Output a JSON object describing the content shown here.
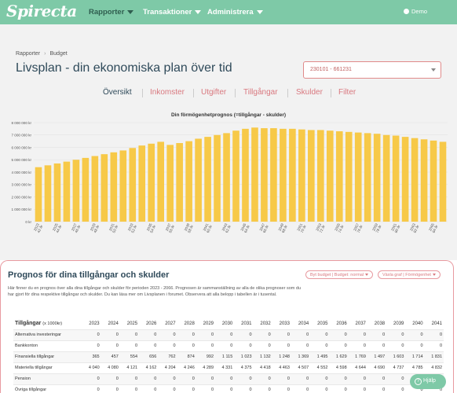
{
  "nav": {
    "logo": "Spirecta",
    "items": [
      {
        "label": "Rapporter"
      },
      {
        "label": "Transaktioner"
      },
      {
        "label": "Administrera"
      }
    ],
    "user": "Demo"
  },
  "breadcrumb": [
    "Rapporter",
    "Budget"
  ],
  "page_title": "Livsplan - din ekonomiska plan över tid",
  "period_select": {
    "value": "230101 - 661231"
  },
  "tabs": [
    {
      "label": "Översikt"
    },
    {
      "label": "Inkomster"
    },
    {
      "label": "Utgifter"
    },
    {
      "label": "Tillgångar"
    },
    {
      "label": "Skulder"
    },
    {
      "label": "Filter"
    }
  ],
  "chart_data": {
    "type": "bar",
    "title": "Din förmögenhetprognos (=tillgångar - skulder)",
    "color": "#f7c948",
    "ylim": [
      0,
      8000000
    ],
    "yticks": [
      "0 kr",
      "1 000 000 kr",
      "2 000 000 kr",
      "3 000 000 kr",
      "4 000 000 kr",
      "5 000 000 kr",
      "6 000 000 kr",
      "7 000 000 kr",
      "8 000 000 kr"
    ],
    "tick_labels": [
      {
        "year": "2023",
        "age": "42 år"
      },
      {
        "year": "2025",
        "age": "44 år"
      },
      {
        "year": "2027",
        "age": "46 år"
      },
      {
        "year": "2029",
        "age": "48 år"
      },
      {
        "year": "2031",
        "age": "50 år"
      },
      {
        "year": "2033",
        "age": "52 år"
      },
      {
        "year": "2035",
        "age": "54 år"
      },
      {
        "year": "2037",
        "age": "56 år"
      },
      {
        "year": "2039",
        "age": "58 år"
      },
      {
        "year": "2041",
        "age": "60 år"
      },
      {
        "year": "2043",
        "age": "62 år"
      },
      {
        "year": "2045",
        "age": "64 år"
      },
      {
        "year": "2047",
        "age": "66 år"
      },
      {
        "year": "2049",
        "age": "68 år"
      },
      {
        "year": "2051",
        "age": "70 år"
      },
      {
        "year": "2053",
        "age": "72 år"
      },
      {
        "year": "2055",
        "age": "74 år"
      },
      {
        "year": "2057",
        "age": "76 år"
      },
      {
        "year": "2059",
        "age": "78 år"
      },
      {
        "year": "2061",
        "age": "80 år"
      },
      {
        "year": "2063",
        "age": "82 år"
      },
      {
        "year": "2065",
        "age": "84 år"
      }
    ],
    "values": [
      4400000,
      4550000,
      4700000,
      4850000,
      5000000,
      5150000,
      5300000,
      5450000,
      5600000,
      5750000,
      5950000,
      6150000,
      6300000,
      6450000,
      6200000,
      6350000,
      6500000,
      6700000,
      6850000,
      7000000,
      7150000,
      7350000,
      7500000,
      7600000,
      7550000,
      7550000,
      7500000,
      7500000,
      7450000,
      7400000,
      7400000,
      7350000,
      7300000,
      7250000,
      7200000,
      7150000,
      7100000,
      7000000,
      6950000,
      6850000,
      6750000,
      6650000,
      6550000,
      6450000
    ]
  },
  "card": {
    "title": "Prognos för dina tillgångar och skulder",
    "budget_pill": "Byt budget | Budget: normal",
    "graph_pill": "Växla graf | Förmögenhet",
    "description": "Här finner du en prognos över alla dina tillgångar och skulder för perioden 2023 - 2066. Prognosen är sammanställning av alla de olika prognoser som du har gjort för dina respektive tillgångar och skulder. Du kan läsa mer om Livsplanen i forumet. Observera att alla belopp i tabellen är i tusental."
  },
  "table": {
    "header_label": "Tillgångar",
    "header_unit": "(x 1000kr)",
    "years": [
      "2023",
      "2024",
      "2025",
      "2026",
      "2027",
      "2028",
      "2029",
      "2030",
      "2031",
      "2032",
      "2033",
      "2034",
      "2035",
      "2036",
      "2037",
      "2038",
      "2039",
      "2040",
      "2041"
    ],
    "rows": [
      {
        "label": "Alternativa investeringar",
        "values": [
          "0",
          "0",
          "0",
          "0",
          "0",
          "0",
          "0",
          "0",
          "0",
          "0",
          "0",
          "0",
          "0",
          "0",
          "0",
          "0",
          "0",
          "0",
          "0"
        ]
      },
      {
        "label": "Bankkonton",
        "values": [
          "0",
          "0",
          "0",
          "0",
          "0",
          "0",
          "0",
          "0",
          "0",
          "0",
          "0",
          "0",
          "0",
          "0",
          "0",
          "0",
          "0",
          "0",
          "0"
        ]
      },
      {
        "label": "Finansiella tillgångar",
        "values": [
          "365",
          "457",
          "554",
          "656",
          "762",
          "874",
          "992",
          "1 115",
          "1 023",
          "1 132",
          "1 248",
          "1 369",
          "1 495",
          "1 629",
          "1 769",
          "1 497",
          "1 603",
          "1 714",
          "1 831"
        ]
      },
      {
        "label": "Materiella tillgångar",
        "values": [
          "4 040",
          "4 080",
          "4 121",
          "4 162",
          "4 204",
          "4 246",
          "4 289",
          "4 331",
          "4 375",
          "4 418",
          "4 463",
          "4 507",
          "4 552",
          "4 598",
          "4 644",
          "4 690",
          "4 737",
          "4 785",
          "4 832"
        ]
      },
      {
        "label": "Pension",
        "values": [
          "0",
          "0",
          "0",
          "0",
          "0",
          "0",
          "0",
          "0",
          "0",
          "0",
          "0",
          "0",
          "0",
          "0",
          "0",
          "0",
          "0",
          "0",
          "0"
        ]
      },
      {
        "label": "Övriga tillgångar",
        "values": [
          "0",
          "0",
          "0",
          "0",
          "0",
          "0",
          "0",
          "0",
          "0",
          "0",
          "0",
          "0",
          "0",
          "0",
          "0",
          "0",
          "0",
          "0",
          "0"
        ]
      }
    ]
  },
  "help_button": "Hjälp",
  "colors": {
    "nav": "#7ec9a7",
    "accent": "#d9787f",
    "bar": "#f7c948",
    "title": "#2f4a5a"
  }
}
